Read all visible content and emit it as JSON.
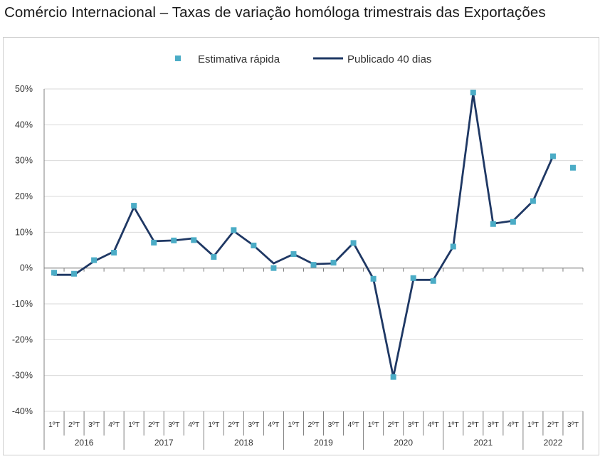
{
  "title": "Comércio Internacional – Taxas de variação homóloga trimestrais das Exportações",
  "colors": {
    "line": "#1f3864",
    "marker": "#4bacc6",
    "grid": "#d9d9d9",
    "axis": "#808080"
  },
  "chart_data": {
    "type": "line",
    "title": "Comércio Internacional – Taxas de variação homóloga trimestrais das Exportações",
    "ylim": [
      -40,
      50
    ],
    "yticks": [
      -40,
      -30,
      -20,
      -10,
      0,
      10,
      20,
      30,
      40,
      50
    ],
    "ytick_labels": [
      "-40%",
      "-30%",
      "-20%",
      "-10%",
      "0%",
      "10%",
      "20%",
      "30%",
      "40%",
      "50%"
    ],
    "grid": true,
    "legend_position": "top-center",
    "categories": [
      "1ºT",
      "2ºT",
      "3ºT",
      "4ºT",
      "1ºT",
      "2ºT",
      "3ºT",
      "4ºT",
      "1ºT",
      "2ºT",
      "3ºT",
      "4ºT",
      "1ºT",
      "2ºT",
      "3ºT",
      "4ºT",
      "1ºT",
      "2ºT",
      "3ºT",
      "4ºT",
      "1ºT",
      "2ºT",
      "3ºT",
      "4ºT",
      "1ºT",
      "2ºT",
      "3ºT"
    ],
    "years": [
      "2016",
      "2017",
      "2018",
      "2019",
      "2020",
      "2021",
      "2022"
    ],
    "series": [
      {
        "name": "Estimativa rápida",
        "style": "markers",
        "values": [
          -1.3,
          -1.6,
          2.2,
          4.3,
          17.4,
          7.1,
          7.7,
          7.8,
          3.1,
          10.6,
          6.3,
          0.0,
          3.9,
          0.9,
          1.5,
          7.0,
          -3.0,
          -30.4,
          -2.8,
          -3.6,
          6.0,
          49.0,
          12.3,
          12.9,
          18.7,
          31.2,
          28.0
        ]
      },
      {
        "name": "Publicado 40 dias",
        "style": "line",
        "values": [
          -1.9,
          -1.9,
          1.9,
          4.6,
          17.0,
          7.5,
          7.7,
          8.3,
          3.3,
          10.3,
          6.3,
          1.3,
          3.9,
          1.1,
          1.3,
          7.0,
          -3.0,
          -30.4,
          -3.3,
          -3.3,
          6.0,
          48.7,
          12.4,
          13.2,
          18.7,
          31.2,
          null
        ]
      }
    ]
  }
}
